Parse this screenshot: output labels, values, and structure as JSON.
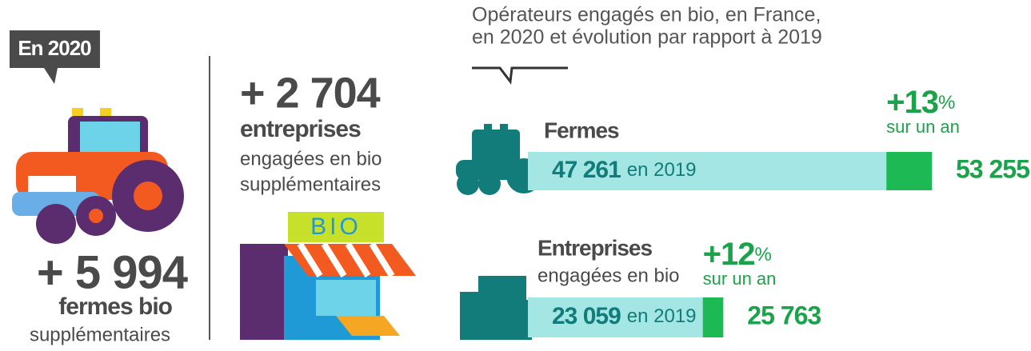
{
  "header": {
    "badge": "En 2020"
  },
  "farms_summary": {
    "value": "+ 5 994",
    "label": "fermes bio",
    "sub": "supplémentaires"
  },
  "companies_summary": {
    "value": "+ 2 704",
    "label": "entreprises",
    "sub": [
      "engagées en bio",
      "supplémentaires"
    ]
  },
  "shop_sign": "BIO",
  "chart": {
    "title": [
      "Opérateurs engagés en bio, en France,",
      "en 2020 et évolution par rapport à 2019"
    ],
    "rows": [
      {
        "name": "Fermes",
        "value_2019": {
          "value": 47261,
          "label": "47 261"
        },
        "suffix_2019": "en 2019",
        "value_2020": {
          "value": 53255,
          "label": "53 255"
        },
        "change": "+13",
        "change_unit": "%",
        "change_caption": "sur un an"
      },
      {
        "name": "Entreprises",
        "subtitle": "engagées en bio",
        "value_2019": {
          "value": 23059,
          "label": "23 059"
        },
        "suffix_2019": "en 2019",
        "value_2020": {
          "value": 25763,
          "label": "25 763"
        },
        "change": "+12",
        "change_unit": "%",
        "change_caption": "sur un an"
      }
    ]
  }
}
